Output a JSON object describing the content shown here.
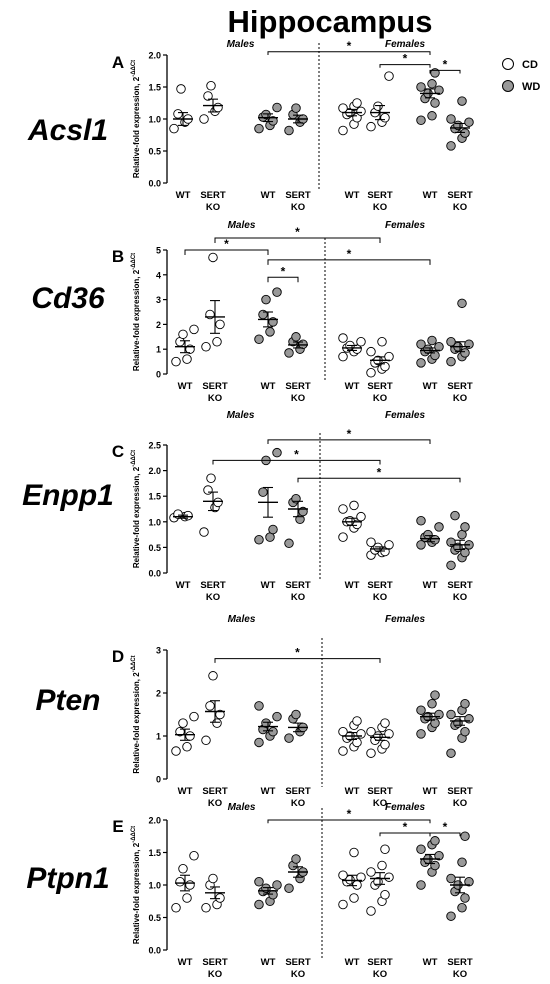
{
  "figure": {
    "title": "Hippocampus",
    "legend": [
      {
        "label": "CD",
        "color": "#ffffff"
      },
      {
        "label": "WD",
        "color": "#999999"
      }
    ],
    "ylabel": "Relative-fold expression, 2",
    "ylabel_sup": "-ΔΔCt",
    "males_label": "Males",
    "females_label": "Females",
    "star": "*",
    "ylabel_font_px": 8
  },
  "chart_data": [
    {
      "type": "scatter",
      "panel": "A",
      "gene": "Acsl1",
      "ylim": [
        0,
        2.0
      ],
      "yticks": [
        "0.0",
        "0.5",
        "1.0",
        "1.5",
        "2.0"
      ],
      "ytick_values": [
        0,
        0.5,
        1.0,
        1.5,
        2.0
      ],
      "groups": [
        {
          "label1": "WT",
          "label2": "",
          "sex": "Males",
          "diet": "CD",
          "values": [
            0.85,
            0.95,
            1.0,
            1.08,
            1.47
          ],
          "mean": 1.0,
          "sem": 0.1
        },
        {
          "label1": "SERT",
          "label2": "KO",
          "sex": "Males",
          "diet": "CD",
          "values": [
            1.0,
            1.12,
            1.18,
            1.36,
            1.52
          ],
          "mean": 1.21,
          "sem": 0.1
        },
        {
          "label1": "WT",
          "label2": "",
          "sex": "Males",
          "diet": "WD",
          "values": [
            0.85,
            0.9,
            0.97,
            1.03,
            1.07,
            1.18
          ],
          "mean": 1.02,
          "sem": 0.06
        },
        {
          "label1": "SERT",
          "label2": "KO",
          "sex": "Males",
          "diet": "WD",
          "values": [
            0.82,
            0.95,
            1.0,
            1.07,
            1.17
          ],
          "mean": 1.0,
          "sem": 0.06
        },
        {
          "label1": "WT",
          "label2": "",
          "sex": "Females",
          "diet": "CD",
          "values": [
            0.82,
            0.92,
            1.02,
            1.07,
            1.1,
            1.12,
            1.17,
            1.2,
            1.25
          ],
          "mean": 1.1,
          "sem": 0.05
        },
        {
          "label1": "SERT",
          "label2": "KO",
          "sex": "Females",
          "diet": "CD",
          "values": [
            0.88,
            0.95,
            1.02,
            1.1,
            1.2,
            1.67
          ],
          "mean": 1.1,
          "sem": 0.11
        },
        {
          "label1": "WT",
          "label2": "",
          "sex": "Females",
          "diet": "WD",
          "values": [
            0.98,
            1.05,
            1.25,
            1.32,
            1.4,
            1.45,
            1.5,
            1.55,
            1.72
          ],
          "mean": 1.4,
          "sem": 0.07
        },
        {
          "label1": "SERT",
          "label2": "KO",
          "sex": "Females",
          "diet": "WD",
          "values": [
            0.58,
            0.7,
            0.78,
            0.85,
            0.9,
            0.95,
            1.0,
            1.28
          ],
          "mean": 0.86,
          "sem": 0.07
        }
      ],
      "divider_after": 4,
      "sex_labels": [
        {
          "text": "Males",
          "group": 1.5
        },
        {
          "text": "Females",
          "group": 5.5
        }
      ],
      "brackets": [
        {
          "from": 2,
          "to": 6,
          "y": 2.05,
          "drop": 0.05
        },
        {
          "from": 5,
          "to": 6,
          "y": 1.85,
          "drop": 0.05
        },
        {
          "from": 6,
          "to": 7,
          "y": 1.76,
          "drop": 0.05
        }
      ]
    },
    {
      "type": "scatter",
      "panel": "B",
      "gene": "Cd36",
      "ylim": [
        0,
        5
      ],
      "yticks": [
        "0",
        "1",
        "2",
        "3",
        "4",
        "5"
      ],
      "ytick_values": [
        0,
        1,
        2,
        3,
        4,
        5
      ],
      "groups": [
        {
          "label1": "WT",
          "label2": "",
          "sex": "Males",
          "diet": "CD",
          "values": [
            0.5,
            0.6,
            1.0,
            1.3,
            1.6,
            1.8
          ],
          "mean": 1.1,
          "sem": 0.24
        },
        {
          "label1": "SERT",
          "label2": "KO",
          "sex": "Males",
          "diet": "CD",
          "values": [
            1.1,
            1.3,
            2.0,
            2.4,
            4.7
          ],
          "mean": 2.3,
          "sem": 0.66
        },
        {
          "label1": "WT",
          "label2": "",
          "sex": "Males",
          "diet": "WD",
          "values": [
            1.4,
            1.7,
            2.1,
            2.4,
            3.0,
            3.3
          ],
          "mean": 2.2,
          "sem": 0.3
        },
        {
          "label1": "SERT",
          "label2": "KO",
          "sex": "Males",
          "diet": "WD",
          "values": [
            0.85,
            1.0,
            1.2,
            1.3,
            1.5
          ],
          "mean": 1.17,
          "sem": 0.12
        },
        {
          "label1": "WT",
          "label2": "",
          "sex": "Females",
          "diet": "CD",
          "values": [
            0.7,
            0.9,
            1.0,
            1.05,
            1.15,
            1.3,
            1.45
          ],
          "mean": 1.05,
          "sem": 0.1
        },
        {
          "label1": "SERT",
          "label2": "KO",
          "sex": "Females",
          "diet": "CD",
          "values": [
            0.05,
            0.2,
            0.3,
            0.45,
            0.55,
            0.7,
            0.9,
            1.3
          ],
          "mean": 0.55,
          "sem": 0.14
        },
        {
          "label1": "WT",
          "label2": "",
          "sex": "Females",
          "diet": "WD",
          "values": [
            0.45,
            0.6,
            0.75,
            0.9,
            1.0,
            1.1,
            1.2,
            1.35
          ],
          "mean": 0.95,
          "sem": 0.1
        },
        {
          "label1": "SERT",
          "label2": "KO",
          "sex": "Females",
          "diet": "WD",
          "values": [
            0.5,
            0.7,
            0.85,
            1.0,
            1.1,
            1.2,
            1.3,
            2.85
          ],
          "mean": 1.1,
          "sem": 0.2
        }
      ],
      "divider_after": 4,
      "sex_labels": [
        {
          "text": "Males",
          "group": 1.5
        },
        {
          "text": "Females",
          "group": 5.5
        }
      ],
      "brackets": [
        {
          "from": 1,
          "to": 5,
          "y": 6.0,
          "drop": 0.2
        },
        {
          "from": 0,
          "to": 2,
          "y": 5.0,
          "drop": 0.2
        },
        {
          "from": 2,
          "to": 6,
          "y": 4.6,
          "drop": 0.2
        },
        {
          "from": 2,
          "to": 3,
          "y": 3.9,
          "drop": 0.2
        }
      ]
    },
    {
      "type": "scatter",
      "panel": "C",
      "gene": "Enpp1",
      "ylim": [
        0,
        2.5
      ],
      "yticks": [
        "0.0",
        "0.5",
        "1.0",
        "1.5",
        "2.0",
        "2.5"
      ],
      "ytick_values": [
        0,
        0.5,
        1.0,
        1.5,
        2.0,
        2.5
      ],
      "groups": [
        {
          "label1": "WT",
          "label2": "",
          "sex": "Males",
          "diet": "CD",
          "values": [
            1.08,
            1.1,
            1.12,
            1.15
          ],
          "mean": 1.1,
          "sem": 0.03
        },
        {
          "label1": "SERT",
          "label2": "KO",
          "sex": "Males",
          "diet": "CD",
          "values": [
            0.8,
            1.28,
            1.38,
            1.62,
            1.85
          ],
          "mean": 1.4,
          "sem": 0.18
        },
        {
          "label1": "WT",
          "label2": "",
          "sex": "Males",
          "diet": "WD",
          "values": [
            0.65,
            0.7,
            0.85,
            1.58,
            2.2,
            2.35
          ],
          "mean": 1.38,
          "sem": 0.29
        },
        {
          "label1": "SERT",
          "label2": "KO",
          "sex": "Males",
          "diet": "WD",
          "values": [
            0.58,
            1.05,
            1.2,
            1.38,
            1.45
          ],
          "mean": 1.25,
          "sem": 0.15
        },
        {
          "label1": "WT",
          "label2": "",
          "sex": "Females",
          "diet": "CD",
          "values": [
            0.7,
            0.88,
            0.95,
            1.0,
            1.02,
            1.1,
            1.25,
            1.32
          ],
          "mean": 1.0,
          "sem": 0.07
        },
        {
          "label1": "SERT",
          "label2": "KO",
          "sex": "Females",
          "diet": "CD",
          "values": [
            0.35,
            0.4,
            0.42,
            0.45,
            0.5,
            0.55,
            0.6
          ],
          "mean": 0.47,
          "sem": 0.04
        },
        {
          "label1": "WT",
          "label2": "",
          "sex": "Females",
          "diet": "WD",
          "values": [
            0.55,
            0.6,
            0.65,
            0.7,
            0.75,
            0.9,
            1.02
          ],
          "mean": 0.67,
          "sem": 0.06
        },
        {
          "label1": "SERT",
          "label2": "KO",
          "sex": "Females",
          "diet": "WD",
          "values": [
            0.15,
            0.3,
            0.4,
            0.45,
            0.5,
            0.55,
            0.6,
            0.75,
            0.9,
            1.12
          ],
          "mean": 0.55,
          "sem": 0.09
        }
      ],
      "divider_after": 4,
      "sex_labels": [
        {
          "text": "Males",
          "group": 1.5
        },
        {
          "text": "Females",
          "group": 5.5
        }
      ],
      "brackets": [
        {
          "from": 2,
          "to": 6,
          "y": 2.6,
          "drop": 0.08
        },
        {
          "from": 1,
          "to": 5,
          "y": 2.2,
          "drop": 0.08
        },
        {
          "from": 3,
          "to": 7,
          "y": 1.85,
          "drop": 0.08
        }
      ]
    },
    {
      "type": "scatter",
      "panel": "D",
      "gene": "Pten",
      "ylim": [
        0,
        3
      ],
      "yticks": [
        "0",
        "1",
        "2",
        "3"
      ],
      "ytick_values": [
        0,
        1,
        2,
        3
      ],
      "groups": [
        {
          "label1": "WT",
          "label2": "",
          "sex": "Males",
          "diet": "CD",
          "values": [
            0.65,
            0.75,
            1.0,
            1.1,
            1.3,
            1.45
          ],
          "mean": 1.03,
          "sem": 0.13
        },
        {
          "label1": "SERT",
          "label2": "KO",
          "sex": "Males",
          "diet": "CD",
          "values": [
            0.9,
            1.3,
            1.5,
            1.7,
            2.4
          ],
          "mean": 1.57,
          "sem": 0.25
        },
        {
          "label1": "WT",
          "label2": "",
          "sex": "Males",
          "diet": "WD",
          "values": [
            0.85,
            1.0,
            1.1,
            1.15,
            1.3,
            1.45,
            1.7
          ],
          "mean": 1.22,
          "sem": 0.1
        },
        {
          "label1": "SERT",
          "label2": "KO",
          "sex": "Males",
          "diet": "WD",
          "values": [
            0.95,
            1.1,
            1.2,
            1.4,
            1.5
          ],
          "mean": 1.2,
          "sem": 0.1
        },
        {
          "label1": "WT",
          "label2": "",
          "sex": "Females",
          "diet": "CD",
          "values": [
            0.65,
            0.75,
            0.85,
            0.95,
            1.0,
            1.05,
            1.1,
            1.25,
            1.35
          ],
          "mean": 1.0,
          "sem": 0.08
        },
        {
          "label1": "SERT",
          "label2": "KO",
          "sex": "Females",
          "diet": "CD",
          "values": [
            0.6,
            0.7,
            0.8,
            0.9,
            1.0,
            1.05,
            1.1,
            1.2,
            1.3
          ],
          "mean": 0.97,
          "sem": 0.07
        },
        {
          "label1": "WT",
          "label2": "",
          "sex": "Females",
          "diet": "WD",
          "values": [
            1.05,
            1.2,
            1.3,
            1.4,
            1.45,
            1.5,
            1.6,
            1.75,
            1.95
          ],
          "mean": 1.45,
          "sem": 0.08
        },
        {
          "label1": "SERT",
          "label2": "KO",
          "sex": "Females",
          "diet": "WD",
          "values": [
            0.6,
            0.95,
            1.1,
            1.25,
            1.3,
            1.4,
            1.5,
            1.6,
            1.75
          ],
          "mean": 1.35,
          "sem": 0.1
        }
      ],
      "divider_after": 4,
      "sex_labels": [
        {
          "text": "Males",
          "group": 1.5
        },
        {
          "text": "Females",
          "group": 5.5
        }
      ],
      "brackets": [
        {
          "from": 1,
          "to": 5,
          "y": 2.8,
          "drop": 0.1
        }
      ]
    },
    {
      "type": "scatter",
      "panel": "E",
      "gene": "Ptpn1",
      "ylim": [
        0,
        2.0
      ],
      "yticks": [
        "0.0",
        "0.5",
        "1.0",
        "1.5",
        "2.0"
      ],
      "ytick_values": [
        0,
        0.5,
        1.0,
        1.5,
        2.0
      ],
      "groups": [
        {
          "label1": "WT",
          "label2": "",
          "sex": "Males",
          "diet": "CD",
          "values": [
            0.65,
            0.8,
            1.0,
            1.05,
            1.25,
            1.45
          ],
          "mean": 1.03,
          "sem": 0.12
        },
        {
          "label1": "SERT",
          "label2": "KO",
          "sex": "Males",
          "diet": "CD",
          "values": [
            0.65,
            0.7,
            0.8,
            1.0,
            1.1
          ],
          "mean": 0.88,
          "sem": 0.09
        },
        {
          "label1": "WT",
          "label2": "",
          "sex": "Males",
          "diet": "WD",
          "values": [
            0.7,
            0.75,
            0.85,
            0.9,
            0.95,
            1.0,
            1.05
          ],
          "mean": 0.91,
          "sem": 0.05
        },
        {
          "label1": "SERT",
          "label2": "KO",
          "sex": "Males",
          "diet": "WD",
          "values": [
            0.95,
            1.1,
            1.2,
            1.3,
            1.4
          ],
          "mean": 1.2,
          "sem": 0.08
        },
        {
          "label1": "WT",
          "label2": "",
          "sex": "Females",
          "diet": "CD",
          "values": [
            0.7,
            0.8,
            1.0,
            1.05,
            1.08,
            1.12,
            1.15,
            1.5
          ],
          "mean": 1.07,
          "sem": 0.08
        },
        {
          "label1": "SERT",
          "label2": "KO",
          "sex": "Females",
          "diet": "CD",
          "values": [
            0.6,
            0.75,
            0.85,
            1.0,
            1.05,
            1.12,
            1.2,
            1.3,
            1.55
          ],
          "mean": 1.1,
          "sem": 0.09
        },
        {
          "label1": "WT",
          "label2": "",
          "sex": "Females",
          "diet": "WD",
          "values": [
            1.0,
            1.2,
            1.3,
            1.35,
            1.4,
            1.45,
            1.55,
            1.62,
            1.68
          ],
          "mean": 1.4,
          "sem": 0.07
        },
        {
          "label1": "SERT",
          "label2": "KO",
          "sex": "Females",
          "diet": "WD",
          "values": [
            0.52,
            0.65,
            0.8,
            0.9,
            1.0,
            1.05,
            1.1,
            1.35,
            1.75
          ],
          "mean": 1.0,
          "sem": 0.12
        }
      ],
      "divider_after": 4,
      "sex_labels": [
        {
          "text": "Males",
          "group": 1.5
        },
        {
          "text": "Females",
          "group": 5.5
        }
      ],
      "brackets": [
        {
          "from": 2,
          "to": 6,
          "y": 2.0,
          "drop": 0.05
        },
        {
          "from": 5,
          "to": 6,
          "y": 1.8,
          "drop": 0.05
        },
        {
          "from": 6,
          "to": 7,
          "y": 1.8,
          "drop": 0.05
        }
      ]
    }
  ]
}
